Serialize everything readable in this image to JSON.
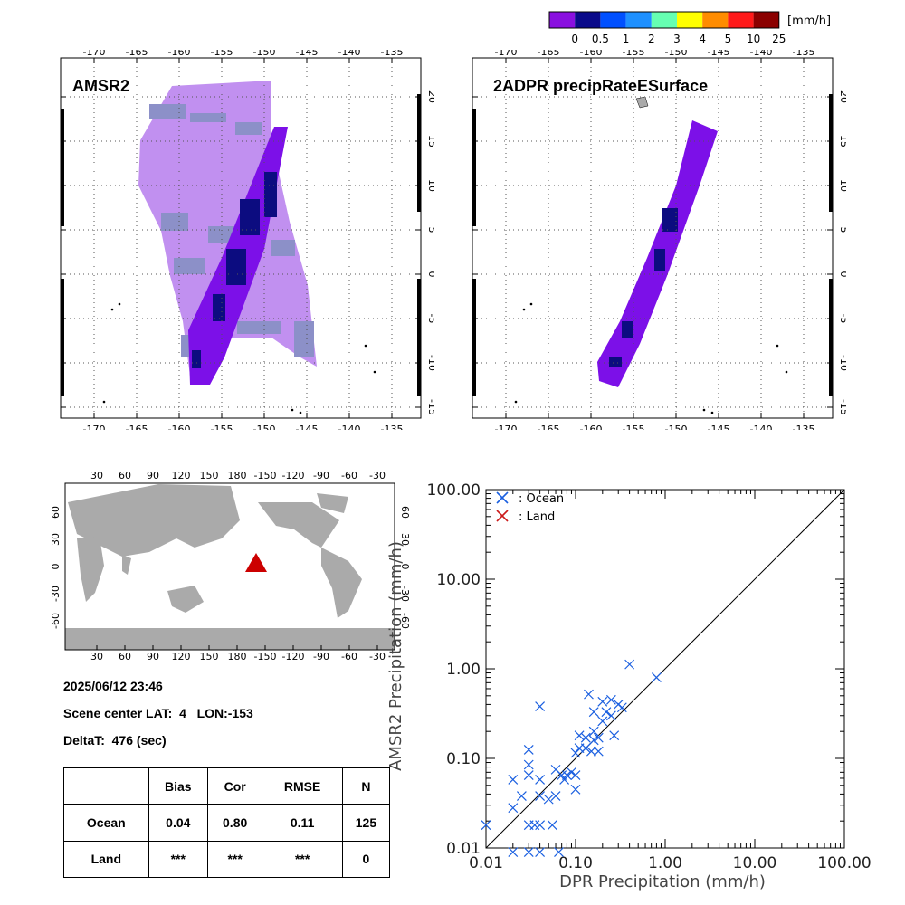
{
  "colorbar": {
    "unit": "[mm/h]",
    "labels": [
      "0",
      "0.5",
      "1",
      "2",
      "3",
      "4",
      "5",
      "10",
      "25"
    ],
    "colors": [
      "#8a10e0",
      "#0a0a8a",
      "#0050ff",
      "#1e90ff",
      "#66ffb2",
      "#ffff00",
      "#ff8c00",
      "#ff1a1a",
      "#8b0000"
    ]
  },
  "map_colors": {
    "light_rain": "#c190f0",
    "mask": "#8c90c8",
    "swath": "#7c10e8",
    "heavy": "#0c0c80",
    "land": "#aaaaaa",
    "marker": "#cc0000"
  },
  "maps": {
    "lon_ticks": [
      "-170",
      "-165",
      "-160",
      "-155",
      "-150",
      "-145",
      "-140",
      "-135"
    ],
    "lat_ticks": [
      "-15",
      "-10",
      "-5",
      "0",
      "5",
      "10",
      "15",
      "20"
    ],
    "left_title": "AMSR2",
    "right_title": "2ADPR precipRateESurface"
  },
  "globe": {
    "lon_ticks": [
      "30",
      "60",
      "90",
      "120",
      "150",
      "180",
      "-150",
      "-120",
      "-90",
      "-60",
      "-30"
    ],
    "lat_ticks": [
      "-60",
      "-30",
      "0",
      "30",
      "60"
    ]
  },
  "info": {
    "datetime": "2025/06/12 23:46",
    "scene_center": "Scene center LAT:  4   LON:-153",
    "delta_t": "DeltaT:  476 (sec)"
  },
  "stats": {
    "headers": [
      "",
      "Bias",
      "Cor",
      "RMSE",
      "N"
    ],
    "rows": [
      [
        "Ocean",
        "0.04",
        "0.80",
        "0.11",
        "125"
      ],
      [
        "Land",
        "***",
        "***",
        "***",
        "0"
      ]
    ]
  },
  "chart_data": {
    "type": "scatter",
    "xlabel": "DPR Precipitation (mm/h)",
    "ylabel": "AMSR2 Precipitation (mm/h)",
    "xscale": "log",
    "yscale": "log",
    "xlim": [
      0.01,
      100
    ],
    "ylim": [
      0.01,
      100
    ],
    "tick_labels": [
      "0.01",
      "0.10",
      "1.00",
      "10.00",
      "100.00"
    ],
    "one_to_one_line": true,
    "legend_position": "top-left",
    "series": [
      {
        "name": ": Ocean",
        "color": "#1a5fe0",
        "points": [
          [
            0.01,
            0.018
          ],
          [
            0.02,
            0.009
          ],
          [
            0.02,
            0.028
          ],
          [
            0.02,
            0.058
          ],
          [
            0.025,
            0.038
          ],
          [
            0.03,
            0.009
          ],
          [
            0.03,
            0.018
          ],
          [
            0.03,
            0.065
          ],
          [
            0.03,
            0.085
          ],
          [
            0.03,
            0.125
          ],
          [
            0.035,
            0.018
          ],
          [
            0.04,
            0.009
          ],
          [
            0.04,
            0.018
          ],
          [
            0.04,
            0.038
          ],
          [
            0.04,
            0.058
          ],
          [
            0.04,
            0.38
          ],
          [
            0.05,
            0.035
          ],
          [
            0.055,
            0.018
          ],
          [
            0.06,
            0.038
          ],
          [
            0.06,
            0.075
          ],
          [
            0.065,
            0.009
          ],
          [
            0.07,
            0.065
          ],
          [
            0.075,
            0.058
          ],
          [
            0.08,
            0.065
          ],
          [
            0.09,
            0.07
          ],
          [
            0.1,
            0.045
          ],
          [
            0.1,
            0.065
          ],
          [
            0.1,
            0.115
          ],
          [
            0.11,
            0.13
          ],
          [
            0.11,
            0.18
          ],
          [
            0.13,
            0.13
          ],
          [
            0.13,
            0.17
          ],
          [
            0.14,
            0.52
          ],
          [
            0.15,
            0.12
          ],
          [
            0.16,
            0.16
          ],
          [
            0.16,
            0.2
          ],
          [
            0.16,
            0.33
          ],
          [
            0.18,
            0.12
          ],
          [
            0.18,
            0.17
          ],
          [
            0.2,
            0.26
          ],
          [
            0.2,
            0.43
          ],
          [
            0.22,
            0.33
          ],
          [
            0.25,
            0.3
          ],
          [
            0.25,
            0.45
          ],
          [
            0.27,
            0.18
          ],
          [
            0.3,
            0.4
          ],
          [
            0.33,
            0.37
          ],
          [
            0.4,
            1.12
          ],
          [
            0.8,
            0.8
          ]
        ]
      },
      {
        "name": ": Land",
        "color": "#cc1a1a",
        "points": []
      }
    ]
  }
}
